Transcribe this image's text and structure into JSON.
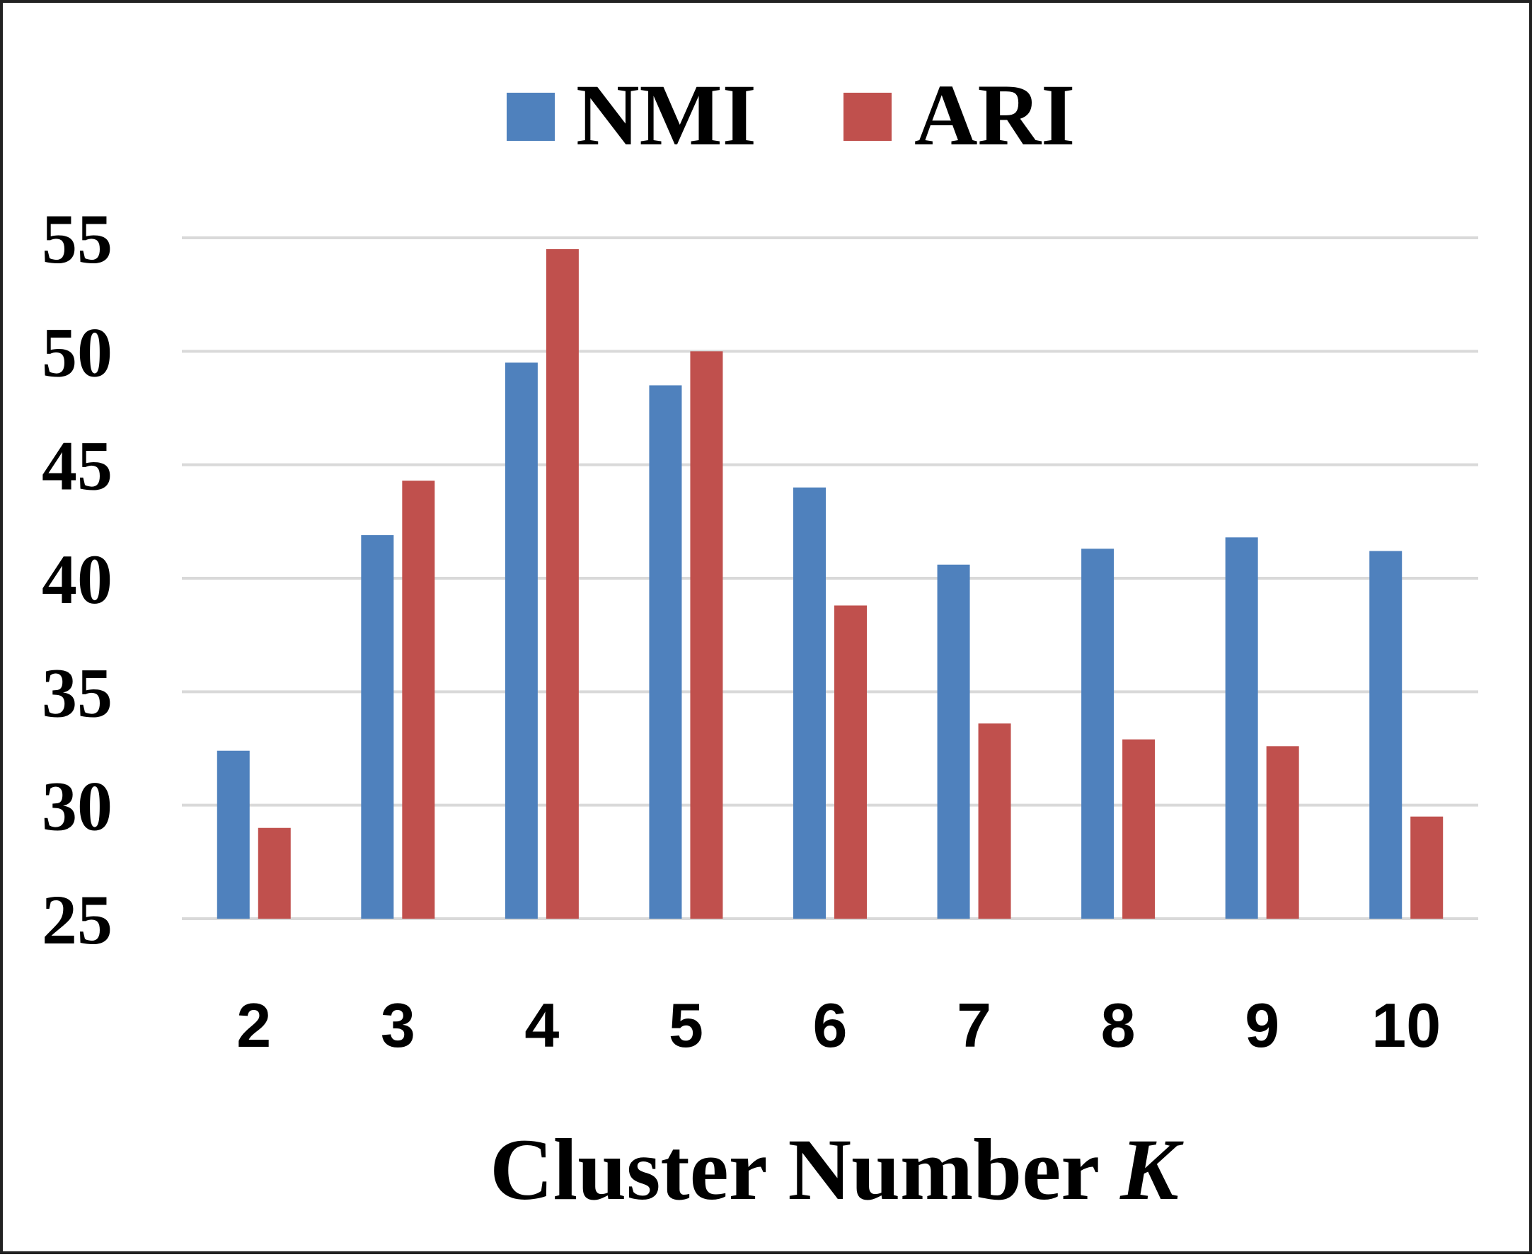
{
  "chart_data": {
    "type": "bar",
    "xlabel": "Cluster Number",
    "xlabel_var": "K",
    "ylabel": "",
    "ylim": [
      25,
      55
    ],
    "y_ticks": [
      25,
      30,
      35,
      40,
      45,
      50,
      55
    ],
    "grid": true,
    "legend_position": "top-center",
    "categories": [
      "2",
      "3",
      "4",
      "5",
      "6",
      "7",
      "8",
      "9",
      "10"
    ],
    "series": [
      {
        "name": "NMI",
        "color": "#4f81bd",
        "values": [
          32.4,
          41.9,
          49.5,
          48.5,
          44.0,
          40.6,
          41.3,
          41.8,
          41.2
        ]
      },
      {
        "name": "ARI",
        "color": "#c0504d",
        "values": [
          29.0,
          44.3,
          54.5,
          50.0,
          38.8,
          33.6,
          32.9,
          32.6,
          29.5
        ]
      }
    ]
  }
}
